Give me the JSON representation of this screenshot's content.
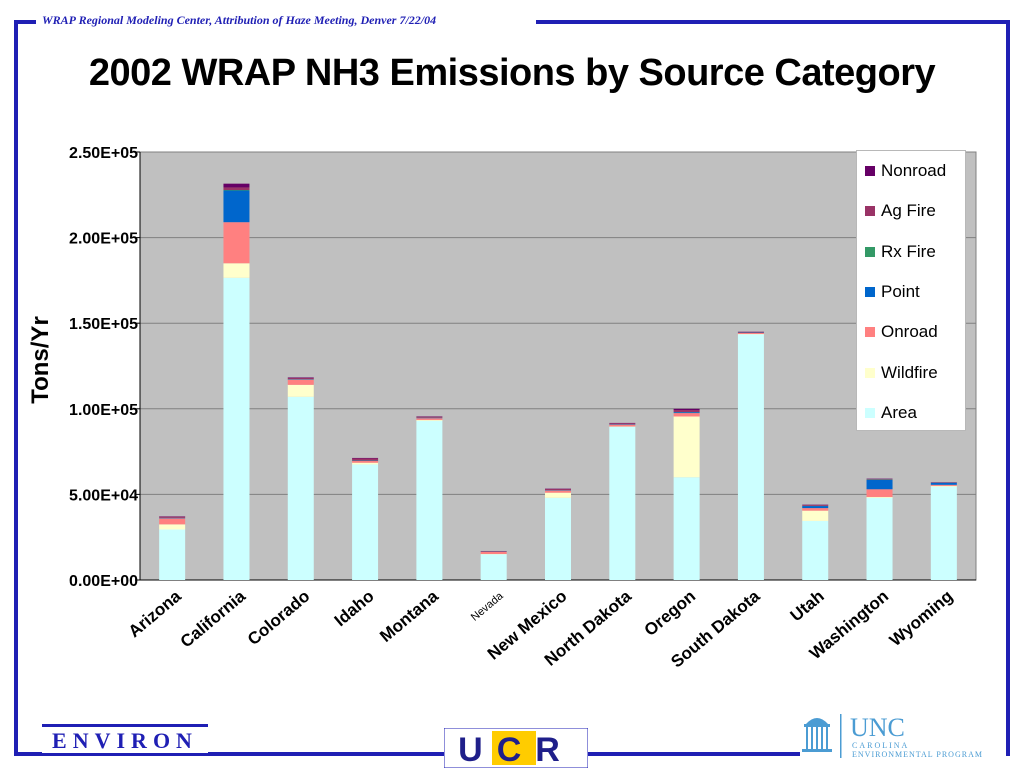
{
  "header": {
    "text": "WRAP Regional Modeling Center, Attribution of Haze Meeting, Denver 7/22/04"
  },
  "slide": {
    "title": "2002 WRAP NH3 Emissions by Source Category"
  },
  "logos": {
    "environ": "ENVIRON",
    "ucr": "UCR",
    "unc_main": "UNC",
    "unc_sub1": "CAROLINA",
    "unc_sub2": "ENVIRONMENTAL PROGRAM"
  },
  "colors": {
    "frame": "#1f1fb4",
    "plot_bg": "#c0c0c0",
    "Area": "#ccffff",
    "Wildfire": "#ffffcc",
    "Onroad": "#ff8080",
    "Point": "#0066cc",
    "Rx Fire": "#339966",
    "Ag Fire": "#993366",
    "Nonroad": "#660066"
  },
  "chart_data": {
    "type": "bar",
    "stacked": true,
    "title": "2002 WRAP NH3 Emissions by Source Category",
    "xlabel": "",
    "ylabel": "Tons/Yr",
    "ylim": [
      0,
      250000
    ],
    "yticks": [
      "0.00E+00",
      "5.00E+04",
      "1.00E+05",
      "1.50E+05",
      "2.00E+05",
      "2.50E+05"
    ],
    "ytick_values": [
      0,
      50000,
      100000,
      150000,
      200000,
      250000
    ],
    "grid": true,
    "legend_position": "top-right",
    "categories": [
      "Arizona",
      "California",
      "Colorado",
      "Idaho",
      "Montana",
      "Nevada",
      "New Mexico",
      "North Dakota",
      "Oregon",
      "South Dakota",
      "Utah",
      "Washington",
      "Wyoming"
    ],
    "series": [
      {
        "name": "Area",
        "values": [
          29500,
          176500,
          107000,
          67500,
          93000,
          15000,
          48000,
          89500,
          60000,
          143500,
          34500,
          48000,
          54500
        ]
      },
      {
        "name": "Wildfire",
        "values": [
          3000,
          8500,
          7000,
          1000,
          500,
          200,
          3000,
          200,
          35500,
          200,
          6000,
          500,
          500
        ]
      },
      {
        "name": "Onroad",
        "values": [
          3500,
          24000,
          3000,
          1000,
          1000,
          1200,
          1200,
          1000,
          2000,
          600,
          1500,
          4500,
          600
        ]
      },
      {
        "name": "Point",
        "values": [
          200,
          18500,
          200,
          200,
          200,
          100,
          200,
          200,
          500,
          200,
          1200,
          5500,
          1200
        ]
      },
      {
        "name": "Rx Fire",
        "values": [
          100,
          300,
          100,
          100,
          100,
          50,
          50,
          50,
          100,
          50,
          100,
          200,
          50
        ]
      },
      {
        "name": "Ag Fire",
        "values": [
          700,
          1500,
          700,
          1200,
          600,
          300,
          700,
          600,
          1200,
          400,
          500,
          200,
          200
        ]
      },
      {
        "name": "Nonroad",
        "values": [
          200,
          2200,
          300,
          300,
          200,
          100,
          200,
          200,
          700,
          100,
          200,
          300,
          100
        ]
      }
    ]
  }
}
